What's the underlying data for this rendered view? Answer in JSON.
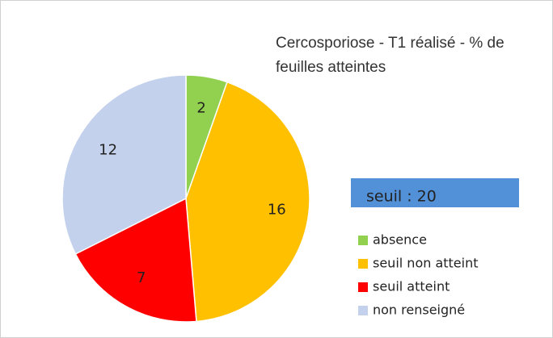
{
  "chart_data": {
    "type": "pie",
    "title": "Cercosporiose - T1 réalisé - % de feuilles atteintes",
    "categories": [
      "absence",
      "seuil non atteint",
      "seuil atteint",
      "non renseigné"
    ],
    "values": [
      2,
      16,
      7,
      12
    ],
    "colors": [
      "#92d050",
      "#ffc000",
      "#ff0000",
      "#c3d1ec"
    ],
    "annotation": "seuil : 20",
    "legend": "right"
  }
}
